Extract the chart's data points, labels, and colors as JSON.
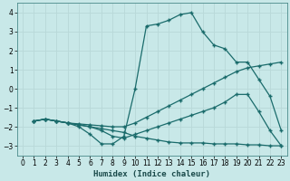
{
  "xlabel": "Humidex (Indice chaleur)",
  "background_color": "#c8e8e8",
  "grid_color": "#b8d8d8",
  "line_color": "#1a6b6b",
  "xlim": [
    -0.5,
    23.5
  ],
  "ylim": [
    -3.5,
    4.5
  ],
  "xticks": [
    0,
    1,
    2,
    3,
    4,
    5,
    6,
    7,
    8,
    9,
    10,
    11,
    12,
    13,
    14,
    15,
    16,
    17,
    18,
    19,
    20,
    21,
    22,
    23
  ],
  "yticks": [
    -3,
    -2,
    -1,
    0,
    1,
    2,
    3,
    4
  ],
  "lines": [
    {
      "x": [
        1,
        2,
        3,
        4,
        5,
        6,
        7,
        8,
        9,
        10,
        11,
        12,
        13,
        14,
        15,
        16,
        17,
        18,
        19,
        20,
        21,
        22,
        23
      ],
      "y": [
        -1.7,
        -1.6,
        -1.7,
        -1.8,
        -2.0,
        -2.4,
        -2.9,
        -2.9,
        -2.5,
        0.0,
        3.3,
        3.4,
        3.6,
        3.9,
        4.0,
        3.0,
        2.3,
        2.1,
        1.4,
        1.4,
        0.5,
        -0.4,
        -2.2
      ]
    },
    {
      "x": [
        1,
        2,
        3,
        4,
        5,
        6,
        7,
        8,
        9,
        10,
        11,
        12,
        13,
        14,
        15,
        16,
        17,
        18,
        19,
        20,
        21,
        22,
        23
      ],
      "y": [
        -1.7,
        -1.6,
        -1.7,
        -1.8,
        -1.85,
        -1.9,
        -1.95,
        -2.0,
        -2.0,
        -1.8,
        -1.5,
        -1.2,
        -0.9,
        -0.6,
        -0.3,
        0.0,
        0.3,
        0.6,
        0.9,
        1.1,
        1.2,
        1.3,
        1.4
      ]
    },
    {
      "x": [
        1,
        2,
        3,
        4,
        5,
        6,
        7,
        8,
        9,
        10,
        11,
        12,
        13,
        14,
        15,
        16,
        17,
        18,
        19,
        20,
        21,
        22,
        23
      ],
      "y": [
        -1.7,
        -1.6,
        -1.7,
        -1.8,
        -1.9,
        -2.0,
        -2.2,
        -2.5,
        -2.6,
        -2.4,
        -2.2,
        -2.0,
        -1.8,
        -1.6,
        -1.4,
        -1.2,
        -1.0,
        -0.7,
        -0.3,
        -0.3,
        -1.2,
        -2.2,
        -3.0
      ]
    },
    {
      "x": [
        1,
        2,
        3,
        4,
        5,
        6,
        7,
        8,
        9,
        10,
        11,
        12,
        13,
        14,
        15,
        16,
        17,
        18,
        19,
        20,
        21,
        22,
        23
      ],
      "y": [
        -1.7,
        -1.6,
        -1.7,
        -1.8,
        -1.9,
        -2.0,
        -2.1,
        -2.2,
        -2.3,
        -2.5,
        -2.6,
        -2.7,
        -2.8,
        -2.85,
        -2.85,
        -2.85,
        -2.9,
        -2.9,
        -2.9,
        -2.95,
        -2.95,
        -3.0,
        -3.0
      ]
    }
  ]
}
